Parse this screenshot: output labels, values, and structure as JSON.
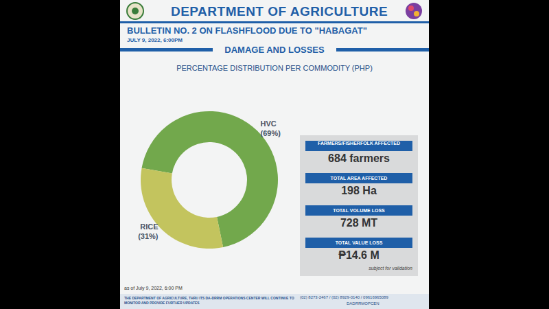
{
  "header": {
    "title": "DEPARTMENT OF AGRICULTURE",
    "bulletin": "BULLETIN NO. 2 ON FLASHFLOOD DUE TO \"HABAGAT\"",
    "date": "JULY 9, 2022, 6:00PM",
    "section": "DAMAGE AND LOSSES"
  },
  "chart_data": {
    "type": "pie",
    "title": "PERCENTAGE DISTRIBUTION PER COMMODITY (PHP)",
    "categories": [
      "HVC",
      "RICE"
    ],
    "values": [
      69,
      31
    ],
    "value_labels": [
      "(69%)",
      "(31%)"
    ],
    "colors": [
      "#72a84c",
      "#c3c45e"
    ],
    "data_labels": true
  },
  "stats": [
    {
      "label": "FARMERS/FISHERFOLK AFFECTED",
      "value": "684 farmers"
    },
    {
      "label": "TOTAL AREA AFFECTED",
      "value": "198 Ha"
    },
    {
      "label": "TOTAL VOLUME LOSS",
      "value": "728 MT"
    },
    {
      "label": "TOTAL VALUE LOSS",
      "value": "₱14.6 M"
    }
  ],
  "note": "subject for validation",
  "footer": {
    "as_of": "as of July 9, 2022, 6:00 PM",
    "message": "THE DEPARTMENT OF AGRICULTURE, THRU ITS DA-DRRM OPERATIONS CENTER WILL CONTINUE TO MONITOR AND PROVIDE FURTHER UPDATES",
    "phones": "(02) 8273-2467 / (02) 8929-0140 / 09616965089",
    "social": "DADRRMOPCEN"
  }
}
